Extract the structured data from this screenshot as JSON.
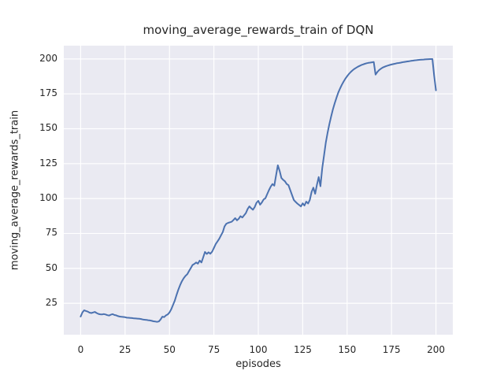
{
  "figure": {
    "background_color": "#ffffff",
    "plot_background_color": "#eaeaf2",
    "gridline_color": "#ffffff",
    "text_color": "#262626"
  },
  "chart_data": {
    "type": "line",
    "title": "moving_average_rewards_train of DQN",
    "xlabel": "episodes",
    "ylabel": "moving_average_rewards_train",
    "x_ticks": [
      0,
      25,
      50,
      75,
      100,
      125,
      150,
      175,
      200
    ],
    "y_ticks": [
      25,
      50,
      75,
      100,
      125,
      150,
      175,
      200
    ],
    "xlim": [
      -9.5,
      209.5
    ],
    "ylim": [
      2.5,
      209.5
    ],
    "grid": "major-both",
    "legend": "none",
    "series": [
      {
        "name": "moving_average_rewards_train",
        "color": "#4c72b0",
        "line_width": 2,
        "points": [
          [
            0,
            15.5
          ],
          [
            1,
            18.5
          ],
          [
            2,
            20
          ],
          [
            3,
            19.5
          ],
          [
            4,
            19
          ],
          [
            5,
            18.3
          ],
          [
            6,
            18
          ],
          [
            7,
            18.4
          ],
          [
            8,
            18.8
          ],
          [
            9,
            18
          ],
          [
            10,
            17.4
          ],
          [
            11,
            17.1
          ],
          [
            12,
            17
          ],
          [
            13,
            17.3
          ],
          [
            14,
            17
          ],
          [
            15,
            16.5
          ],
          [
            16,
            16.2
          ],
          [
            17,
            16.8
          ],
          [
            18,
            17.2
          ],
          [
            19,
            16.6
          ],
          [
            20,
            16.4
          ],
          [
            21,
            15.8
          ],
          [
            22,
            15.5
          ],
          [
            23,
            15.3
          ],
          [
            24,
            15.2
          ],
          [
            25,
            15
          ],
          [
            26,
            14.7
          ],
          [
            27,
            14.6
          ],
          [
            28,
            14.5
          ],
          [
            29,
            14.4
          ],
          [
            30,
            14.2
          ],
          [
            31,
            14.1
          ],
          [
            32,
            14
          ],
          [
            33,
            13.9
          ],
          [
            34,
            13.7
          ],
          [
            35,
            13.4
          ],
          [
            36,
            13.2
          ],
          [
            37,
            13.1
          ],
          [
            38,
            12.9
          ],
          [
            39,
            12.7
          ],
          [
            40,
            12.4
          ],
          [
            41,
            12.1
          ],
          [
            42,
            11.9
          ],
          [
            43,
            11.7
          ],
          [
            44,
            12
          ],
          [
            45,
            13.4
          ],
          [
            46,
            15.4
          ],
          [
            47,
            15.1
          ],
          [
            48,
            16.3
          ],
          [
            49,
            17
          ],
          [
            50,
            18.4
          ],
          [
            51,
            20.8
          ],
          [
            52,
            23.8
          ],
          [
            53,
            27
          ],
          [
            54,
            31
          ],
          [
            55,
            34.8
          ],
          [
            56,
            38
          ],
          [
            57,
            40.8
          ],
          [
            58,
            43
          ],
          [
            59,
            44.6
          ],
          [
            60,
            45.8
          ],
          [
            61,
            48
          ],
          [
            62,
            50.2
          ],
          [
            63,
            52.4
          ],
          [
            64,
            53.2
          ],
          [
            65,
            54.2
          ],
          [
            66,
            53.4
          ],
          [
            67,
            55.6
          ],
          [
            68,
            54.2
          ],
          [
            69,
            58
          ],
          [
            70,
            61.8
          ],
          [
            71,
            60.3
          ],
          [
            72,
            61.5
          ],
          [
            73,
            60.5
          ],
          [
            74,
            62
          ],
          [
            75,
            64.6
          ],
          [
            76,
            67.4
          ],
          [
            77,
            69.2
          ],
          [
            78,
            71.2
          ],
          [
            79,
            73.6
          ],
          [
            80,
            76
          ],
          [
            81,
            80
          ],
          [
            82,
            82
          ],
          [
            83,
            82.6
          ],
          [
            84,
            83
          ],
          [
            85,
            83.4
          ],
          [
            86,
            84.6
          ],
          [
            87,
            86
          ],
          [
            88,
            84.4
          ],
          [
            89,
            85.6
          ],
          [
            90,
            87.4
          ],
          [
            91,
            86.4
          ],
          [
            92,
            88
          ],
          [
            93,
            89.6
          ],
          [
            94,
            92.6
          ],
          [
            95,
            94.4
          ],
          [
            96,
            93
          ],
          [
            97,
            92
          ],
          [
            98,
            94
          ],
          [
            99,
            97
          ],
          [
            100,
            98.4
          ],
          [
            101,
            95.6
          ],
          [
            102,
            97.2
          ],
          [
            103,
            99.4
          ],
          [
            104,
            100.2
          ],
          [
            105,
            103.2
          ],
          [
            106,
            106
          ],
          [
            107,
            108.6
          ],
          [
            108,
            110.4
          ],
          [
            109,
            109.2
          ],
          [
            110,
            116.8
          ],
          [
            111,
            123.8
          ],
          [
            112,
            119.8
          ],
          [
            113,
            114.8
          ],
          [
            114,
            113.4
          ],
          [
            115,
            112.4
          ],
          [
            116,
            110.4
          ],
          [
            117,
            109.6
          ],
          [
            118,
            106
          ],
          [
            119,
            102.4
          ],
          [
            120,
            99
          ],
          [
            121,
            97.6
          ],
          [
            122,
            96.4
          ],
          [
            123,
            95.4
          ],
          [
            124,
            94.4
          ],
          [
            125,
            96.6
          ],
          [
            126,
            95
          ],
          [
            127,
            97.8
          ],
          [
            128,
            96.4
          ],
          [
            129,
            99
          ],
          [
            130,
            104.8
          ],
          [
            131,
            107.8
          ],
          [
            132,
            103.4
          ],
          [
            133,
            109.8
          ],
          [
            134,
            115.4
          ],
          [
            135,
            108.8
          ],
          [
            136,
            121.8
          ],
          [
            137,
            131
          ],
          [
            138,
            140
          ],
          [
            139,
            147.2
          ],
          [
            140,
            153.2
          ],
          [
            141,
            158.8
          ],
          [
            142,
            163.8
          ],
          [
            143,
            168.2
          ],
          [
            144,
            172.2
          ],
          [
            145,
            175.8
          ],
          [
            146,
            178.8
          ],
          [
            147,
            181.4
          ],
          [
            148,
            183.8
          ],
          [
            149,
            185.8
          ],
          [
            150,
            187.6
          ],
          [
            151,
            189.2
          ],
          [
            152,
            190.6
          ],
          [
            153,
            191.8
          ],
          [
            154,
            192.8
          ],
          [
            155,
            193.6
          ],
          [
            156,
            194.4
          ],
          [
            157,
            195
          ],
          [
            158,
            195.6
          ],
          [
            159,
            196.1
          ],
          [
            160,
            196.5
          ],
          [
            161,
            196.9
          ],
          [
            162,
            197.2
          ],
          [
            163,
            197.4
          ],
          [
            164,
            197.6
          ],
          [
            165,
            197.8
          ],
          [
            166,
            188.8
          ],
          [
            167,
            190.6
          ],
          [
            168,
            192
          ],
          [
            169,
            193
          ],
          [
            170,
            193.8
          ],
          [
            171,
            194.4
          ],
          [
            172,
            194.9
          ],
          [
            173,
            195.3
          ],
          [
            174,
            195.7
          ],
          [
            175,
            196
          ],
          [
            176,
            196.3
          ],
          [
            177,
            196.6
          ],
          [
            178,
            196.9
          ],
          [
            179,
            197.1
          ],
          [
            180,
            197.3
          ],
          [
            181,
            197.6
          ],
          [
            182,
            197.8
          ],
          [
            183,
            198
          ],
          [
            184,
            198.2
          ],
          [
            185,
            198.4
          ],
          [
            186,
            198.6
          ],
          [
            187,
            198.8
          ],
          [
            188,
            199
          ],
          [
            189,
            199.1
          ],
          [
            190,
            199.3
          ],
          [
            191,
            199.4
          ],
          [
            192,
            199.5
          ],
          [
            193,
            199.6
          ],
          [
            194,
            199.7
          ],
          [
            195,
            199.8
          ],
          [
            196,
            199.85
          ],
          [
            197,
            199.9
          ],
          [
            198,
            199.9
          ],
          [
            199,
            188
          ],
          [
            200,
            177.5
          ]
        ]
      }
    ]
  }
}
